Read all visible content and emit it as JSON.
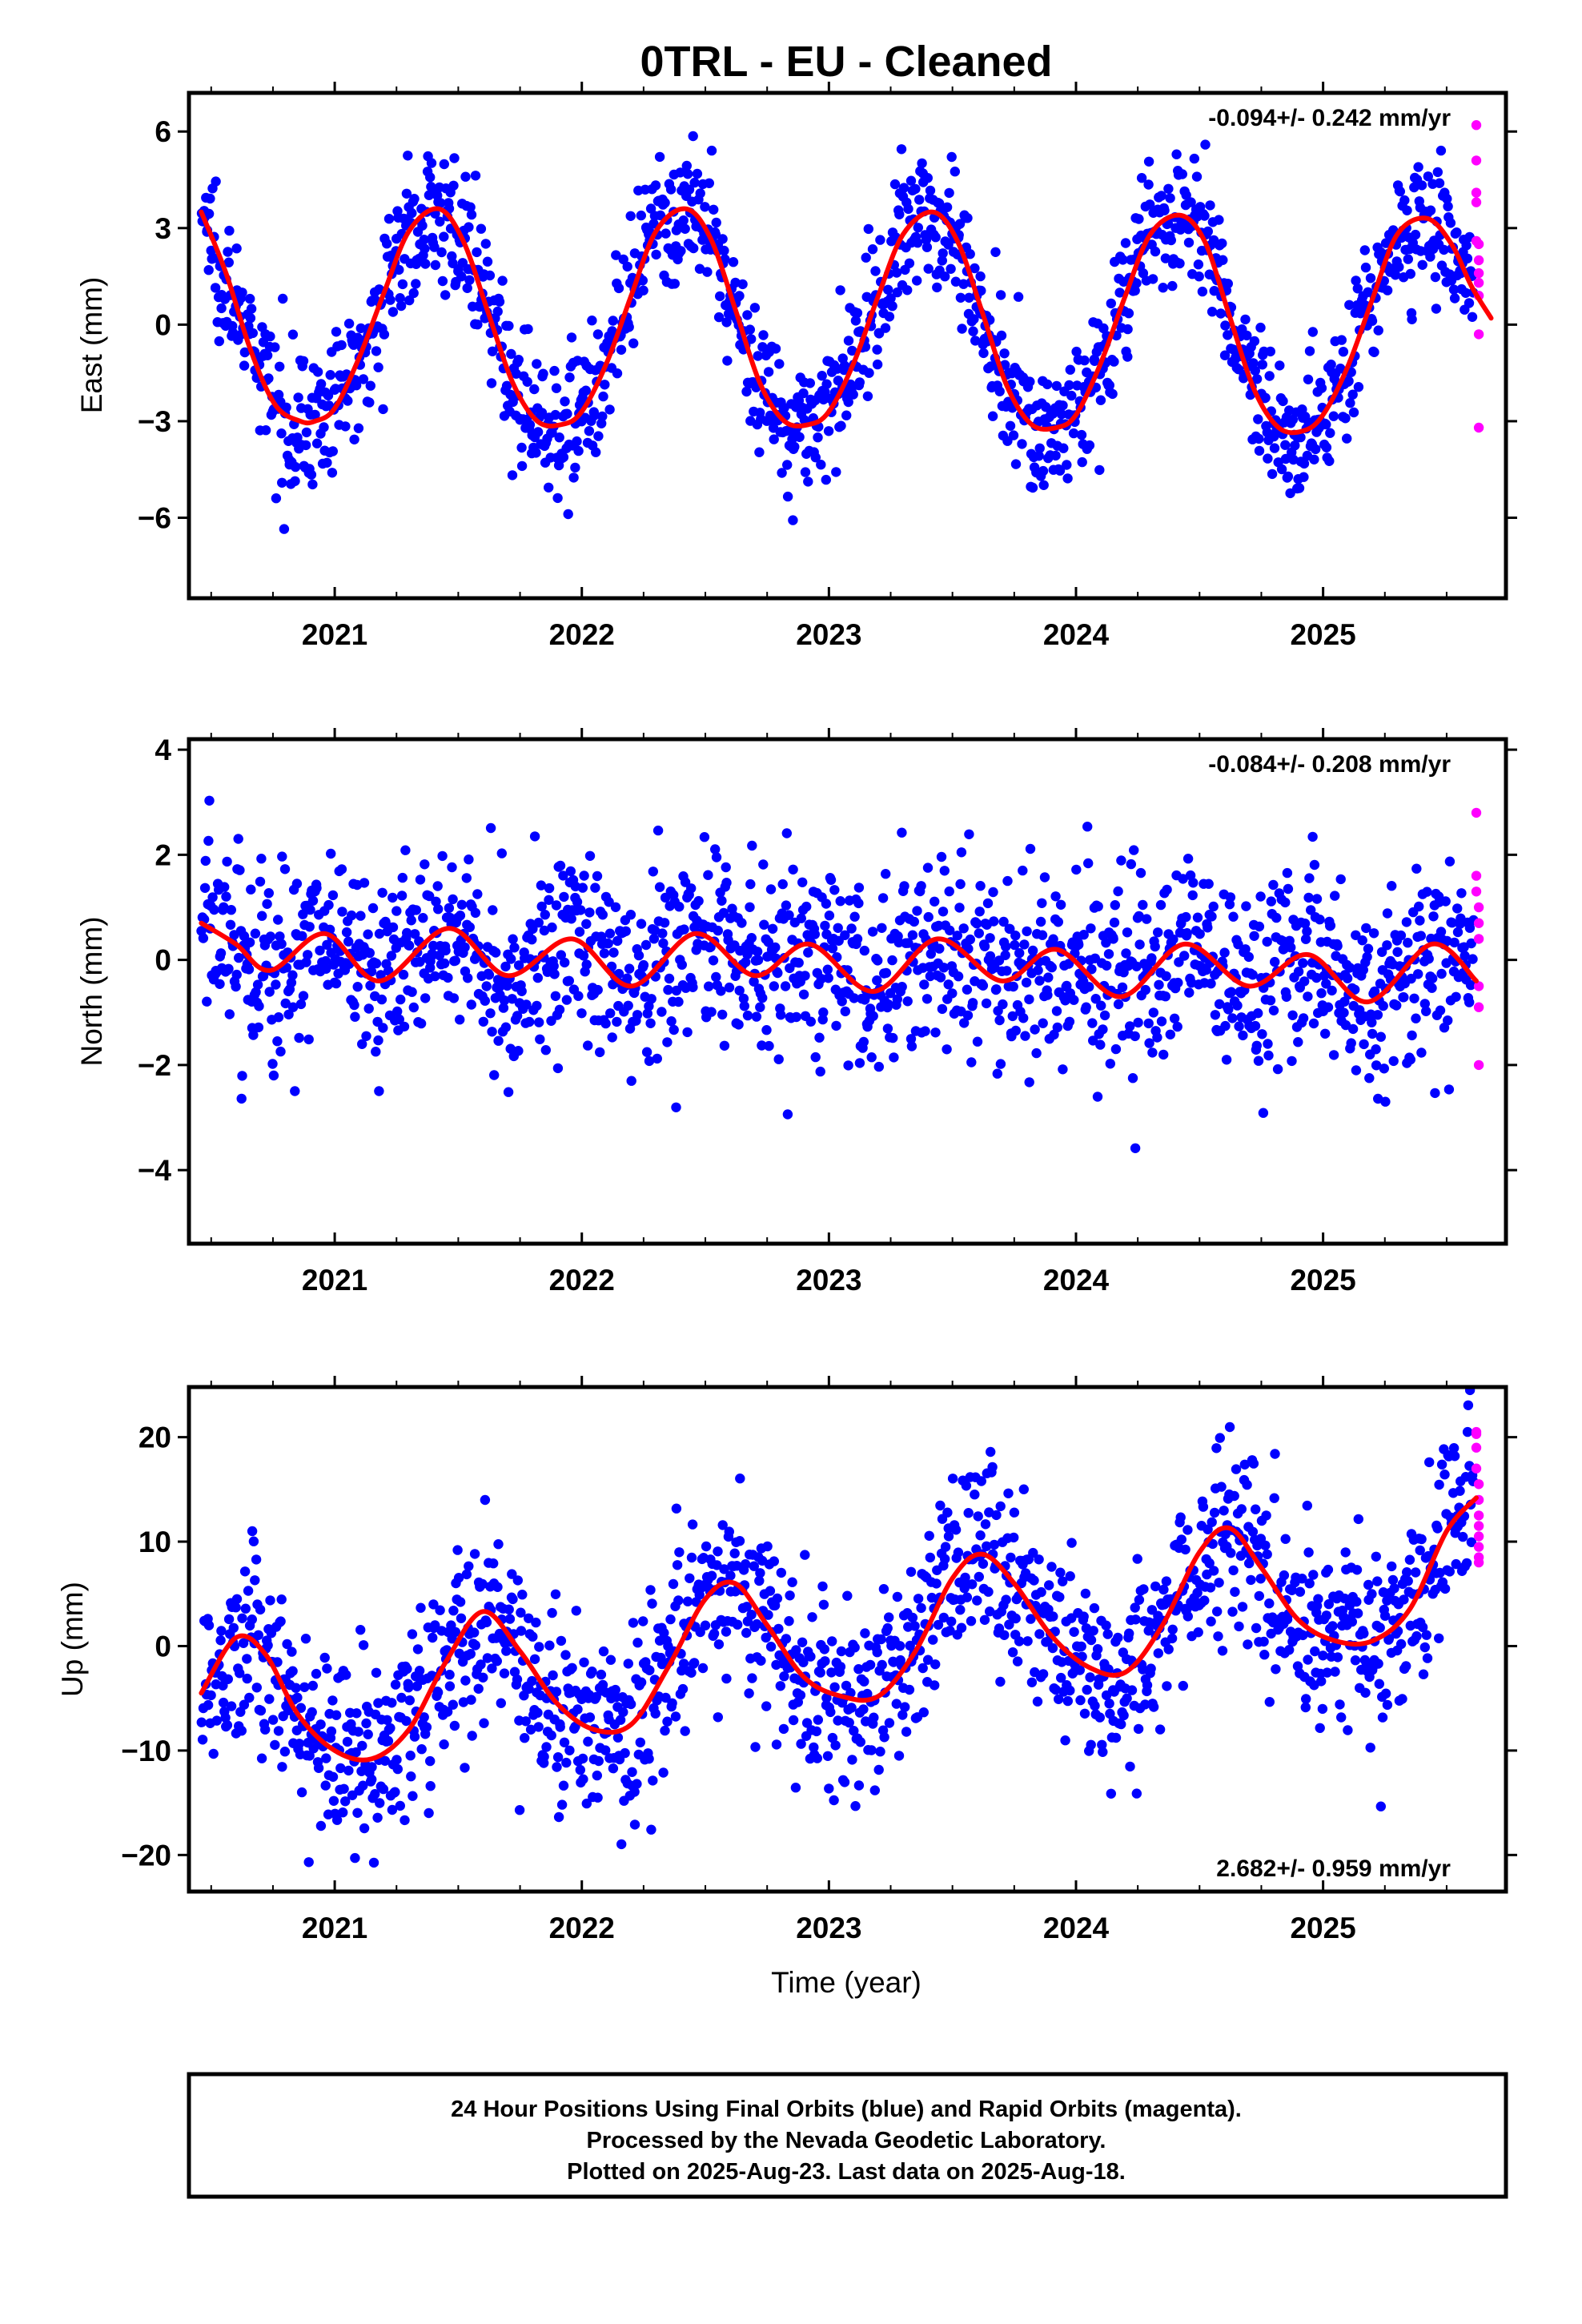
{
  "page": {
    "title": "0TRL  - EU - Cleaned"
  },
  "colors": {
    "final": "#0000ff",
    "rapid": "#ff00ff",
    "model": "#ff0000",
    "frame": "#000000"
  },
  "caption": {
    "lines": [
      "24 Hour Positions Using Final Orbits (blue) and Rapid Orbits (magenta).",
      "Processed by the Nevada Geodetic Laboratory.",
      "Plotted on 2025-Aug-23. Last data on 2025-Aug-18."
    ]
  },
  "chart_data": [
    {
      "type": "scatter",
      "id": "east",
      "ylabel": "East (mm)",
      "xlabel": "",
      "rate_text": "-0.094+/- 0.242 mm/yr",
      "rate_position": "top-right",
      "xlim": [
        2020.41,
        2025.74
      ],
      "ylim": [
        -8.5,
        7.2
      ],
      "xticks": [
        2021,
        2022,
        2023,
        2024,
        2025
      ],
      "xtick_labels": [
        "2021",
        "2022",
        "2023",
        "2024",
        "2025"
      ],
      "yticks": [
        -6,
        -3,
        0,
        3,
        6
      ],
      "ytick_labels": [
        "−6",
        "−3",
        "0",
        "3",
        "6"
      ],
      "grid": false,
      "model": {
        "name": "",
        "x": [
          2020.46,
          2020.56,
          2020.66,
          2020.76,
          2020.86,
          2020.92,
          2021.0,
          2021.1,
          2021.2,
          2021.3,
          2021.42,
          2021.52,
          2021.62,
          2021.72,
          2021.82,
          2021.92,
          2022.0,
          2022.1,
          2022.2,
          2022.3,
          2022.42,
          2022.52,
          2022.62,
          2022.72,
          2022.82,
          2022.92,
          2023.0,
          2023.1,
          2023.2,
          2023.3,
          2023.42,
          2023.52,
          2023.62,
          2023.72,
          2023.82,
          2023.92,
          2024.0,
          2024.1,
          2024.2,
          2024.3,
          2024.42,
          2024.52,
          2024.62,
          2024.72,
          2024.82,
          2024.92,
          2025.0,
          2025.1,
          2025.2,
          2025.3,
          2025.42,
          2025.52,
          2025.6,
          2025.68
        ],
        "y": [
          3.5,
          1.6,
          -0.8,
          -2.5,
          -3.0,
          -3.0,
          -2.6,
          -1.0,
          1.0,
          2.9,
          3.6,
          2.6,
          0.4,
          -1.8,
          -3.0,
          -3.1,
          -2.7,
          -1.2,
          0.9,
          2.9,
          3.6,
          2.7,
          0.5,
          -1.8,
          -3.0,
          -3.1,
          -2.7,
          -1.2,
          0.9,
          2.8,
          3.5,
          2.6,
          0.4,
          -1.9,
          -3.1,
          -3.2,
          -2.8,
          -1.2,
          0.9,
          2.8,
          3.4,
          2.6,
          0.3,
          -2.0,
          -3.2,
          -3.3,
          -2.8,
          -1.3,
          0.8,
          2.8,
          3.3,
          2.5,
          1.2,
          0.2
        ]
      },
      "series": [
        {
          "name": "Final Orbits (blue)",
          "color_key": "final",
          "count": 1500
        },
        {
          "name": "Rapid Orbits (magenta)",
          "color_key": "rapid",
          "x": [
            2025.62,
            2025.62,
            2025.62,
            2025.62,
            2025.62,
            2025.63,
            2025.63,
            2025.63,
            2025.63,
            2025.63,
            2025.63,
            2025.63
          ],
          "y": [
            6.2,
            5.1,
            4.1,
            3.8,
            2.6,
            2.0,
            1.3,
            0.9,
            2.5,
            -0.3,
            -3.2,
            1.6
          ]
        }
      ]
    },
    {
      "type": "scatter",
      "id": "north",
      "ylabel": "North (mm)",
      "xlabel": "",
      "rate_text": "-0.084+/- 0.208 mm/yr",
      "rate_position": "top-right",
      "xlim": [
        2020.41,
        2025.74
      ],
      "ylim": [
        -5.4,
        4.2
      ],
      "xticks": [
        2021,
        2022,
        2023,
        2024,
        2025
      ],
      "xtick_labels": [
        "2021",
        "2022",
        "2023",
        "2024",
        "2025"
      ],
      "yticks": [
        -4,
        -2,
        0,
        2,
        4
      ],
      "ytick_labels": [
        "−4",
        "−2",
        "0",
        "2",
        "4"
      ],
      "grid": false,
      "model": {
        "name": "",
        "x": [
          2020.46,
          2020.6,
          2020.74,
          2020.96,
          2021.18,
          2021.46,
          2021.7,
          2021.96,
          2022.2,
          2022.46,
          2022.7,
          2022.92,
          2023.18,
          2023.44,
          2023.7,
          2023.92,
          2024.18,
          2024.44,
          2024.7,
          2024.94,
          2025.18,
          2025.44,
          2025.62
        ],
        "y": [
          0.7,
          0.3,
          -0.2,
          0.5,
          -0.4,
          0.6,
          -0.3,
          0.4,
          -0.5,
          0.5,
          -0.3,
          0.3,
          -0.6,
          0.4,
          -0.4,
          0.2,
          -0.7,
          0.3,
          -0.5,
          0.1,
          -0.8,
          0.3,
          -0.4
        ]
      },
      "series": [
        {
          "name": "Final Orbits (blue)",
          "color_key": "final",
          "count": 1500
        },
        {
          "name": "Rapid Orbits (magenta)",
          "color_key": "rapid",
          "x": [
            2025.62,
            2025.62,
            2025.62,
            2025.63,
            2025.63,
            2025.63,
            2025.63,
            2025.63,
            2025.63
          ],
          "y": [
            2.8,
            1.6,
            1.3,
            1.0,
            0.7,
            0.4,
            -0.5,
            -0.9,
            -2.0
          ]
        }
      ]
    },
    {
      "type": "scatter",
      "id": "up",
      "ylabel": "Up (mm)",
      "xlabel": "Time (year)",
      "rate_text": "2.682+/- 0.959 mm/yr",
      "rate_position": "bottom-right",
      "xlim": [
        2020.41,
        2025.74
      ],
      "ylim": [
        -23.5,
        24.8
      ],
      "xticks": [
        2021,
        2022,
        2023,
        2024,
        2025
      ],
      "xtick_labels": [
        "2021",
        "2022",
        "2023",
        "2024",
        "2025"
      ],
      "yticks": [
        -20,
        -10,
        0,
        10,
        20
      ],
      "ytick_labels": [
        "−20",
        "−10",
        "0",
        "10",
        "20"
      ],
      "grid": false,
      "model": {
        "name": "",
        "x": [
          2020.46,
          2020.6,
          2020.72,
          2020.85,
          2021.0,
          2021.15,
          2021.3,
          2021.45,
          2021.6,
          2021.75,
          2021.9,
          2022.05,
          2022.2,
          2022.35,
          2022.5,
          2022.62,
          2022.75,
          2022.9,
          2023.05,
          2023.2,
          2023.35,
          2023.5,
          2023.62,
          2023.75,
          2023.9,
          2024.05,
          2024.2,
          2024.35,
          2024.5,
          2024.62,
          2024.75,
          2024.9,
          2025.05,
          2025.2,
          2025.35,
          2025.5,
          2025.62
        ],
        "y": [
          -4.5,
          0.8,
          -0.8,
          -6.5,
          -10.0,
          -10.8,
          -8.0,
          -1.5,
          3.3,
          -0.5,
          -5.5,
          -8.0,
          -7.5,
          -2.0,
          4.5,
          6.0,
          2.0,
          -3.0,
          -4.8,
          -4.8,
          -0.5,
          6.5,
          8.8,
          6.0,
          1.0,
          -2.0,
          -2.5,
          2.0,
          9.0,
          11.3,
          7.5,
          2.5,
          0.5,
          0.5,
          3.5,
          11.0,
          14.2
        ]
      },
      "series": [
        {
          "name": "Final Orbits (blue)",
          "color_key": "final",
          "count": 1500
        },
        {
          "name": "Rapid Orbits (magenta)",
          "color_key": "rapid",
          "x": [
            2025.62,
            2025.62,
            2025.62,
            2025.62,
            2025.63,
            2025.63,
            2025.63,
            2025.63,
            2025.63,
            2025.63,
            2025.63,
            2025.63
          ],
          "y": [
            20.5,
            20.3,
            19.0,
            17.0,
            15.5,
            14.0,
            12.5,
            11.5,
            10.5,
            9.5,
            8.5,
            8.0
          ]
        }
      ]
    }
  ]
}
